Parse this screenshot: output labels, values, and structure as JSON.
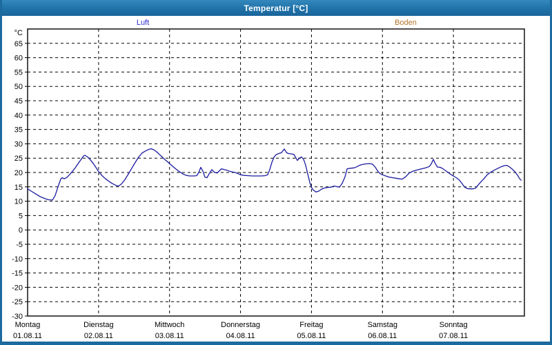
{
  "window": {
    "title": "Temperatur [°C]"
  },
  "legend": {
    "items": [
      {
        "label": "Luft",
        "color": "#2a2acc"
      },
      {
        "label": "Boden",
        "color": "#b5732a"
      }
    ]
  },
  "chart_data": {
    "type": "line",
    "title": "Temperatur [°C]",
    "ylabel": "°C",
    "ylim": [
      -30,
      70
    ],
    "x_range": [
      0,
      7
    ],
    "grid": "dashed",
    "legend_position": "top",
    "yticks": [
      65,
      60,
      55,
      50,
      45,
      40,
      35,
      30,
      25,
      20,
      15,
      10,
      5,
      0,
      -5,
      -10,
      -15,
      -20,
      -25,
      -30
    ],
    "x_days": [
      {
        "name": "Montag",
        "date": "01.08.11"
      },
      {
        "name": "Dienstag",
        "date": "02.08.11"
      },
      {
        "name": "Mittwoch",
        "date": "03.08.11"
      },
      {
        "name": "Donnerstag",
        "date": "04.08.11"
      },
      {
        "name": "Freitag",
        "date": "05.08.11"
      },
      {
        "name": "Samstag",
        "date": "06.08.11"
      },
      {
        "name": "Sonntag",
        "date": "07.08.11"
      }
    ],
    "series": [
      {
        "name": "Luft",
        "color": "#1a1aa0",
        "points": [
          [
            0.0,
            14.3
          ],
          [
            0.058,
            13.4
          ],
          [
            0.117,
            12.5
          ],
          [
            0.175,
            11.6
          ],
          [
            0.233,
            11.0
          ],
          [
            0.292,
            10.5
          ],
          [
            0.35,
            10.4
          ],
          [
            0.389,
            12.0
          ],
          [
            0.428,
            15.0
          ],
          [
            0.467,
            17.7
          ],
          [
            0.486,
            18.2
          ],
          [
            0.515,
            17.8
          ],
          [
            0.554,
            18.3
          ],
          [
            0.593,
            19.3
          ],
          [
            0.632,
            20.4
          ],
          [
            0.671,
            21.6
          ],
          [
            0.71,
            23.0
          ],
          [
            0.749,
            24.4
          ],
          [
            0.787,
            25.7
          ],
          [
            0.807,
            26.0
          ],
          [
            0.846,
            25.4
          ],
          [
            0.885,
            24.4
          ],
          [
            0.924,
            23.2
          ],
          [
            0.962,
            21.8
          ],
          [
            1.0,
            20.3
          ],
          [
            1.05,
            18.9
          ],
          [
            1.099,
            17.8
          ],
          [
            1.147,
            16.9
          ],
          [
            1.196,
            16.1
          ],
          [
            1.244,
            15.5
          ],
          [
            1.283,
            15.3
          ],
          [
            1.322,
            16.0
          ],
          [
            1.371,
            17.5
          ],
          [
            1.42,
            19.5
          ],
          [
            1.468,
            21.5
          ],
          [
            1.517,
            23.5
          ],
          [
            1.565,
            25.4
          ],
          [
            1.614,
            26.8
          ],
          [
            1.662,
            27.5
          ],
          [
            1.701,
            28.0
          ],
          [
            1.74,
            28.3
          ],
          [
            1.779,
            27.9
          ],
          [
            1.818,
            27.2
          ],
          [
            1.857,
            26.3
          ],
          [
            1.896,
            25.4
          ],
          [
            1.935,
            24.5
          ],
          [
            1.974,
            23.7
          ],
          [
            2.0,
            23.1
          ],
          [
            2.042,
            22.2
          ],
          [
            2.09,
            21.2
          ],
          [
            2.139,
            20.3
          ],
          [
            2.188,
            19.5
          ],
          [
            2.236,
            19.0
          ],
          [
            2.285,
            18.8
          ],
          [
            2.343,
            18.8
          ],
          [
            2.382,
            18.9
          ],
          [
            2.411,
            20.0
          ],
          [
            2.44,
            21.8
          ],
          [
            2.469,
            20.5
          ],
          [
            2.499,
            18.4
          ],
          [
            2.528,
            18.2
          ],
          [
            2.557,
            19.5
          ],
          [
            2.596,
            21.0
          ],
          [
            2.635,
            20.0
          ],
          [
            2.673,
            19.8
          ],
          [
            2.703,
            20.6
          ],
          [
            2.732,
            21.3
          ],
          [
            2.771,
            21.0
          ],
          [
            2.81,
            20.8
          ],
          [
            2.849,
            20.4
          ],
          [
            2.888,
            20.2
          ],
          [
            2.926,
            20.0
          ],
          [
            2.965,
            19.6
          ],
          [
            3.0,
            19.2
          ],
          [
            3.053,
            19.0
          ],
          [
            3.111,
            18.9
          ],
          [
            3.169,
            18.8
          ],
          [
            3.228,
            18.8
          ],
          [
            3.286,
            18.8
          ],
          [
            3.344,
            18.9
          ],
          [
            3.383,
            19.2
          ],
          [
            3.412,
            21.0
          ],
          [
            3.442,
            23.5
          ],
          [
            3.471,
            25.3
          ],
          [
            3.5,
            26.2
          ],
          [
            3.539,
            26.6
          ],
          [
            3.578,
            26.9
          ],
          [
            3.617,
            28.2
          ],
          [
            3.646,
            27.0
          ],
          [
            3.675,
            26.6
          ],
          [
            3.714,
            26.5
          ],
          [
            3.753,
            26.3
          ],
          [
            3.782,
            25.0
          ],
          [
            3.801,
            24.2
          ],
          [
            3.831,
            25.0
          ],
          [
            3.86,
            25.4
          ],
          [
            3.889,
            24.6
          ],
          [
            3.918,
            22.5
          ],
          [
            3.947,
            19.5
          ],
          [
            3.976,
            16.5
          ],
          [
            4.0,
            14.8
          ],
          [
            4.025,
            13.9
          ],
          [
            4.064,
            13.2
          ],
          [
            4.103,
            13.5
          ],
          [
            4.142,
            14.2
          ],
          [
            4.181,
            14.6
          ],
          [
            4.229,
            14.8
          ],
          [
            4.278,
            14.9
          ],
          [
            4.317,
            15.3
          ],
          [
            4.356,
            15.1
          ],
          [
            4.395,
            14.9
          ],
          [
            4.434,
            16.3
          ],
          [
            4.472,
            18.5
          ],
          [
            4.502,
            21.3
          ],
          [
            4.55,
            21.5
          ],
          [
            4.599,
            21.6
          ],
          [
            4.638,
            22.0
          ],
          [
            4.677,
            22.5
          ],
          [
            4.716,
            22.8
          ],
          [
            4.764,
            23.0
          ],
          [
            4.813,
            23.1
          ],
          [
            4.861,
            22.9
          ],
          [
            4.9,
            21.8
          ],
          [
            4.939,
            20.3
          ],
          [
            4.968,
            19.6
          ],
          [
            5.0,
            19.2
          ],
          [
            5.046,
            18.8
          ],
          [
            5.094,
            18.4
          ],
          [
            5.143,
            18.2
          ],
          [
            5.191,
            18.0
          ],
          [
            5.24,
            17.8
          ],
          [
            5.279,
            17.7
          ],
          [
            5.328,
            18.5
          ],
          [
            5.376,
            19.8
          ],
          [
            5.425,
            20.4
          ],
          [
            5.474,
            20.8
          ],
          [
            5.522,
            21.1
          ],
          [
            5.571,
            21.4
          ],
          [
            5.62,
            21.7
          ],
          [
            5.659,
            22.1
          ],
          [
            5.688,
            23.0
          ],
          [
            5.717,
            24.6
          ],
          [
            5.746,
            23.0
          ],
          [
            5.775,
            21.9
          ],
          [
            5.814,
            21.8
          ],
          [
            5.853,
            21.3
          ],
          [
            5.892,
            20.6
          ],
          [
            5.931,
            19.9
          ],
          [
            5.97,
            19.2
          ],
          [
            6.0,
            18.8
          ],
          [
            6.038,
            18.2
          ],
          [
            6.077,
            17.5
          ],
          [
            6.116,
            16.3
          ],
          [
            6.155,
            15.0
          ],
          [
            6.194,
            14.4
          ],
          [
            6.233,
            14.3
          ],
          [
            6.272,
            14.3
          ],
          [
            6.311,
            14.5
          ],
          [
            6.35,
            15.7
          ],
          [
            6.389,
            16.8
          ],
          [
            6.428,
            17.8
          ],
          [
            6.476,
            19.2
          ],
          [
            6.525,
            20.1
          ],
          [
            6.574,
            20.8
          ],
          [
            6.622,
            21.4
          ],
          [
            6.671,
            22.0
          ],
          [
            6.72,
            22.4
          ],
          [
            6.749,
            22.5
          ],
          [
            6.788,
            22.0
          ],
          [
            6.827,
            21.2
          ],
          [
            6.866,
            20.3
          ],
          [
            6.905,
            19.0
          ],
          [
            6.934,
            17.8
          ],
          [
            6.954,
            17.3
          ]
        ]
      },
      {
        "name": "Boden",
        "color": "#b5732a",
        "points": []
      }
    ]
  }
}
